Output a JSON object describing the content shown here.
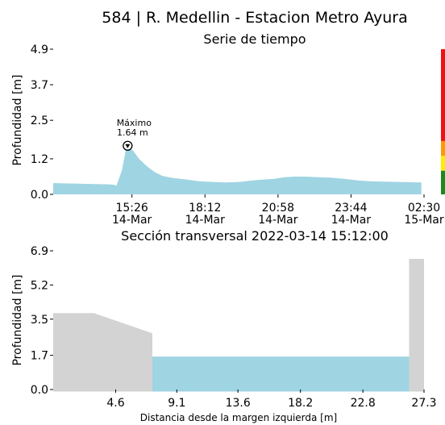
{
  "header": {
    "title": "584 | R. Medellin - Estacion Metro Ayura"
  },
  "chart_data": [
    {
      "type": "area",
      "title": "Serie de tiempo",
      "ylabel": "Profundidad [m]",
      "xlabel": "",
      "ylim": [
        0,
        4.9
      ],
      "yticks": [
        "0.0",
        "1.2",
        "2.5",
        "3.7",
        "4.9"
      ],
      "ytick_values": [
        0,
        1.2,
        2.5,
        3.7,
        4.9
      ],
      "xticks": [
        {
          "hours": 15.433,
          "label1": "15:26",
          "label2": "14-Mar"
        },
        {
          "hours": 18.2,
          "label1": "18:12",
          "label2": "14-Mar"
        },
        {
          "hours": 20.967,
          "label1": "20:58",
          "label2": "14-Mar"
        },
        {
          "hours": 23.733,
          "label1": "23:44",
          "label2": "14-Mar"
        },
        {
          "hours": 26.5,
          "label1": "02:30",
          "label2": "15-Mar"
        }
      ],
      "x_hours": [
        12.45,
        12.9,
        13.4,
        13.9,
        14.4,
        14.7,
        14.85,
        14.95,
        15.05,
        15.15,
        15.2,
        15.27,
        15.35,
        15.5,
        15.7,
        16.0,
        16.3,
        16.6,
        17.0,
        17.5,
        18.0,
        18.5,
        19.0,
        19.5,
        20.0,
        20.4,
        20.8,
        21.2,
        21.6,
        22.0,
        22.5,
        23.0,
        23.5,
        24.0,
        24.5,
        25.0,
        25.5,
        26.0,
        26.4
      ],
      "y": [
        0.38,
        0.37,
        0.36,
        0.35,
        0.34,
        0.33,
        0.3,
        0.55,
        0.8,
        1.25,
        1.5,
        1.64,
        1.58,
        1.45,
        1.2,
        0.95,
        0.75,
        0.62,
        0.55,
        0.5,
        0.44,
        0.42,
        0.4,
        0.42,
        0.47,
        0.5,
        0.52,
        0.58,
        0.6,
        0.6,
        0.58,
        0.56,
        0.52,
        0.47,
        0.44,
        0.43,
        0.42,
        0.41,
        0.4
      ],
      "series_color": "#9fd4e3",
      "annotation": {
        "label1": "Máximo",
        "label2": "1.64 m",
        "x_hours": 15.27,
        "y": 1.64
      },
      "alert_scale": [
        {
          "from": 0,
          "to": 0.8,
          "color": "#1a8a1a"
        },
        {
          "from": 0.8,
          "to": 1.3,
          "color": "#ffee00"
        },
        {
          "from": 1.3,
          "to": 1.8,
          "color": "#ff9900"
        },
        {
          "from": 1.8,
          "to": 4.9,
          "color": "#ee1111"
        }
      ]
    },
    {
      "type": "area",
      "title": "Sección transversal 2022-03-14 15:12:00",
      "xlabel": "Distancia desde la margen izquierda [m]",
      "ylabel": "Profundidad [m]",
      "xlim": [
        0,
        27.3
      ],
      "ylim": [
        0,
        6.9
      ],
      "xticks": [
        "4.6",
        "9.1",
        "13.6",
        "18.2",
        "22.8",
        "27.3"
      ],
      "xtick_values": [
        4.6,
        9.1,
        13.6,
        18.2,
        22.8,
        27.3
      ],
      "yticks": [
        "0.0",
        "1.7",
        "3.5",
        "5.2",
        "6.9"
      ],
      "ytick_values": [
        0,
        1.7,
        3.5,
        5.2,
        6.9
      ],
      "bed_x": [
        0,
        3.0,
        7.3,
        7.3,
        8.0,
        26.2,
        26.2,
        27.3
      ],
      "bed_y": [
        3.8,
        3.8,
        2.8,
        -0.1,
        -0.1,
        -0.1,
        6.5,
        6.5
      ],
      "water_level": 1.64,
      "water_x_range": [
        7.3,
        26.2
      ],
      "bed_color": "#d3d3d3",
      "water_color": "#9fd4e3"
    }
  ]
}
